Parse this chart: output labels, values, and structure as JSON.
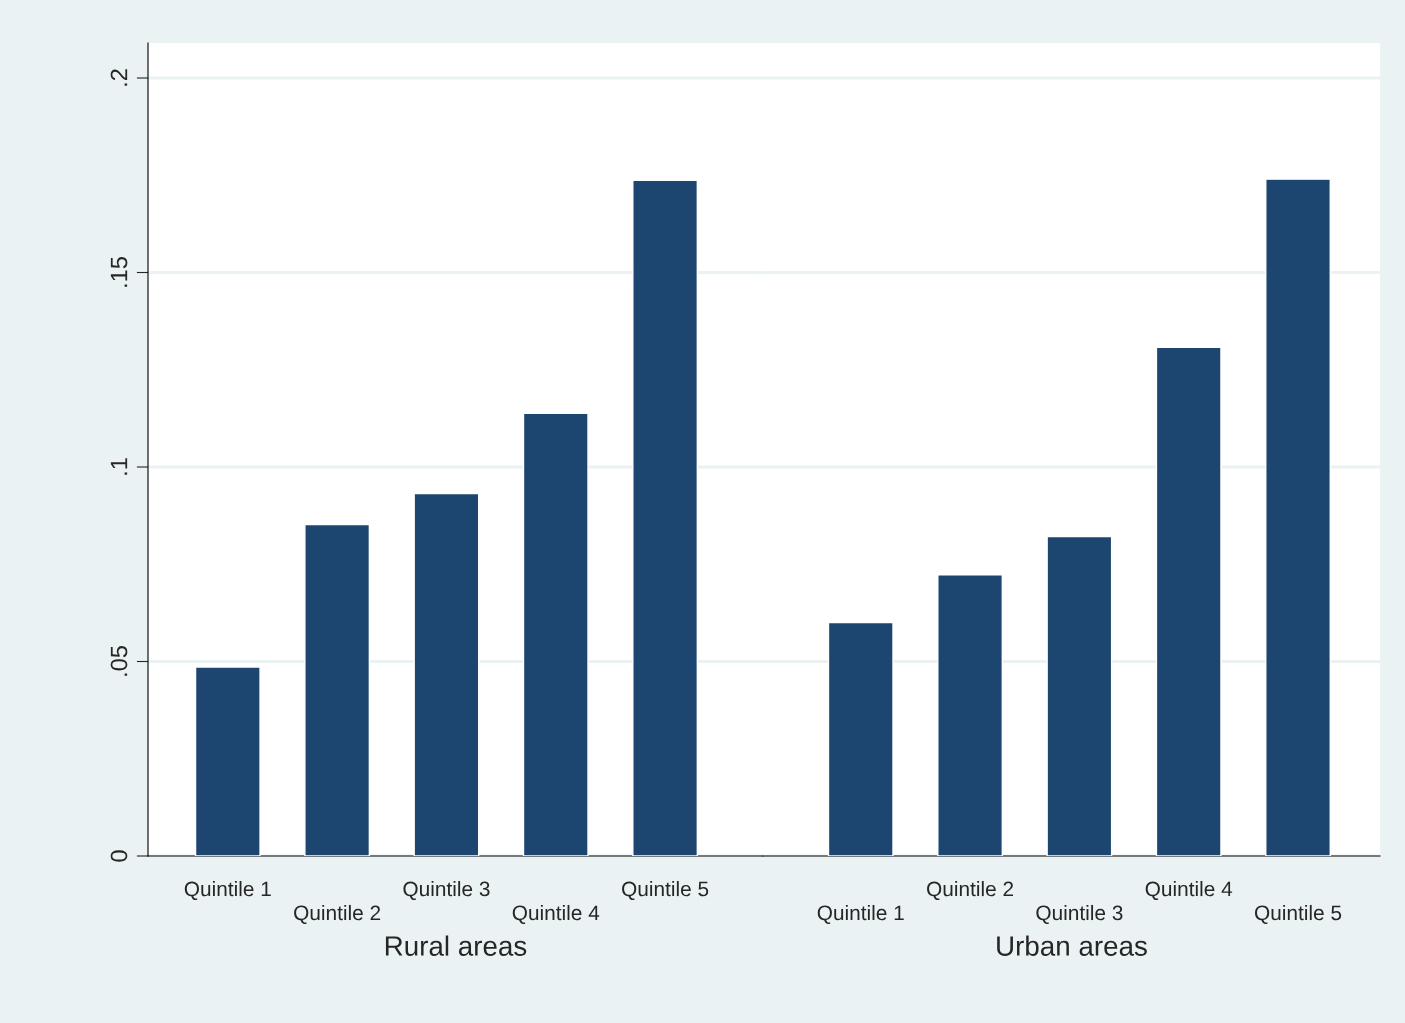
{
  "chart_data": [
    {
      "type": "bar",
      "categories": [
        "Quintile 1",
        "Quintile 2",
        "Quintile 3",
        "Quintile 4",
        "Quintile 5"
      ],
      "xlabel": "Rural areas",
      "values": [
        0.0486,
        0.0852,
        0.0932,
        0.1138,
        0.1737
      ],
      "color": "#1c4670",
      "ylim": [
        0,
        0.209
      ],
      "yticks": [
        {
          "value": 0,
          "label": "0"
        },
        {
          "value": 0.05,
          "label": ".05"
        },
        {
          "value": 0.1,
          "label": ".1"
        },
        {
          "value": 0.15,
          "label": ".15"
        },
        {
          "value": 0.2,
          "label": ".2"
        }
      ],
      "grid": "y"
    },
    {
      "type": "bar",
      "categories": [
        "Quintile 1",
        "Quintile 2",
        "Quintile 3",
        "Quintile 4",
        "Quintile 5"
      ],
      "xlabel": "Urban areas",
      "values": [
        0.06,
        0.0723,
        0.0821,
        0.1308,
        0.174
      ],
      "color": "#1c4670",
      "ylim": [
        0,
        0.209
      ],
      "yticks": [
        0,
        0.05,
        0.1,
        0.15,
        0.2
      ],
      "grid": "y",
      "tick_labels": "x"
    }
  ]
}
